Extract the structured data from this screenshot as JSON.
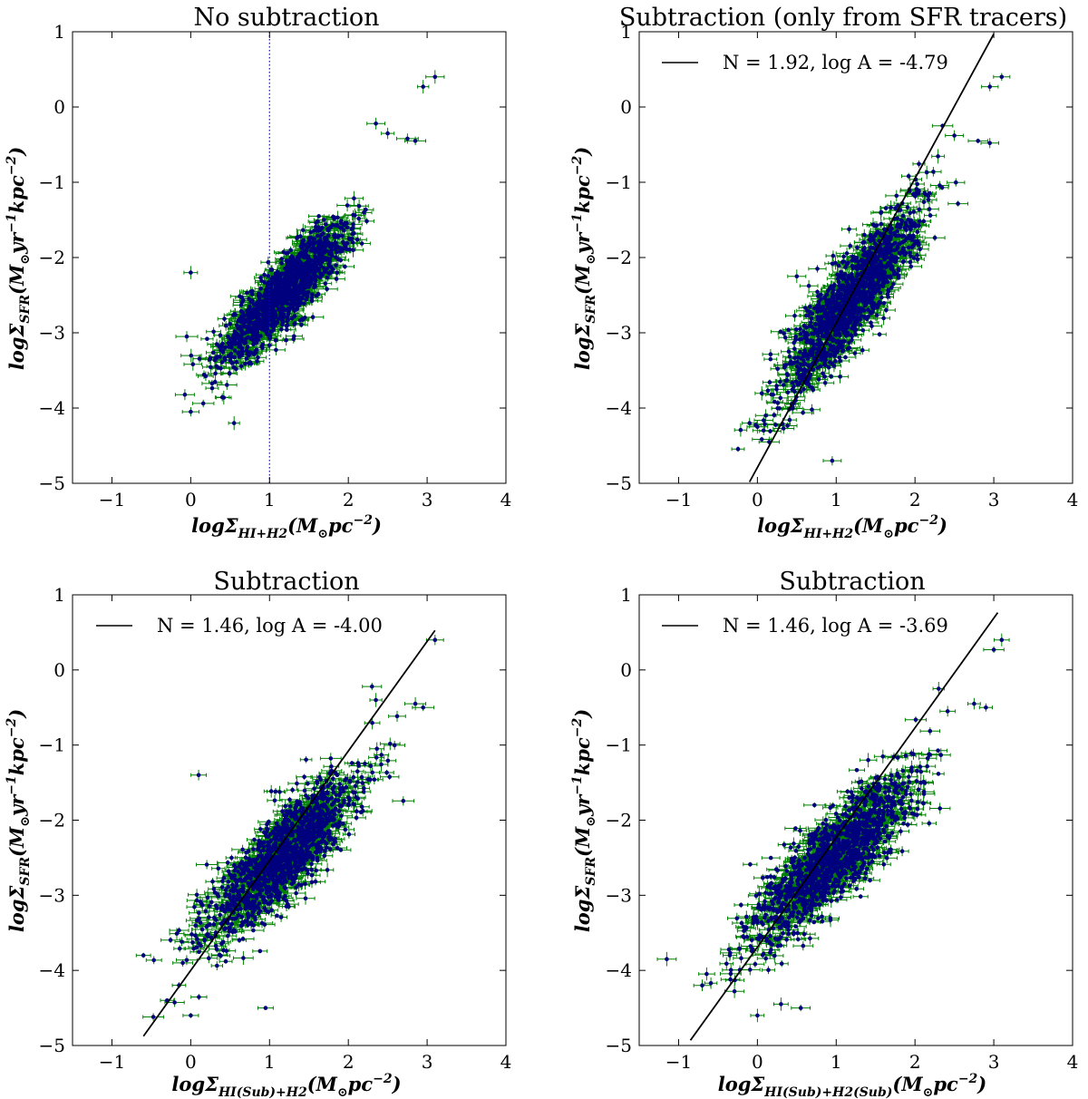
{
  "chart_data": [
    {
      "type": "scatter",
      "title": "No subtraction",
      "xlabel": {
        "base": "logΣ",
        "sub": "HI+H2",
        "unit": "(M",
        "unit_sub": "⊙",
        "unit_rest": "pc",
        "unit_sup": "−2",
        "unit_close": ")"
      },
      "ylabel": {
        "base": "logΣ",
        "sub": "SFR",
        "unit": "(M",
        "unit_sub": "⊙",
        "unit_rest": "yr",
        "unit_sup": "−1",
        "unit_rest2": "kpc",
        "unit_sup2": "−2",
        "unit_close": ")"
      },
      "xlim": [
        -1.5,
        4
      ],
      "ylim": [
        -5,
        1
      ],
      "xticks": [
        "−1",
        "0",
        "1",
        "2",
        "3",
        "4"
      ],
      "yticks": [
        "−5",
        "−4",
        "−3",
        "−2",
        "−1",
        "0",
        "1"
      ],
      "vline": 1.0,
      "fit": null,
      "cloud": {
        "center_x": 1.2,
        "center_y": -2.45,
        "slope": 1.0,
        "spread_x": 0.4,
        "spread_perp": 0.22,
        "n": 1300,
        "x_min": -0.2,
        "x_max": 2.9
      },
      "outliers": [
        [
          3.1,
          0.4
        ],
        [
          2.95,
          0.27
        ],
        [
          2.75,
          -0.42
        ],
        [
          2.85,
          -0.45
        ],
        [
          2.35,
          -0.22
        ],
        [
          2.5,
          -0.35
        ],
        [
          0.55,
          -4.2
        ],
        [
          0.0,
          -4.05
        ],
        [
          -0.05,
          -3.05
        ],
        [
          0.0,
          -2.2
        ]
      ],
      "colors": {
        "points": "#00007f",
        "errorbars": "#008000",
        "vline": "#0000ff"
      }
    },
    {
      "type": "scatter",
      "title": "Subtraction (only from SFR tracers)",
      "xlabel": {
        "base": "logΣ",
        "sub": "HI+H2",
        "unit": "(M",
        "unit_sub": "⊙",
        "unit_rest": "pc",
        "unit_sup": "−2",
        "unit_close": ")"
      },
      "ylabel": {
        "base": "logΣ",
        "sub": "SFR",
        "unit": "(M",
        "unit_sub": "⊙",
        "unit_rest": "yr",
        "unit_sup": "−1",
        "unit_rest2": "kpc",
        "unit_sup2": "−2",
        "unit_close": ")"
      },
      "xlim": [
        -1.5,
        4
      ],
      "ylim": [
        -5,
        1
      ],
      "xticks": [
        "−1",
        "0",
        "1",
        "2",
        "3",
        "4"
      ],
      "yticks": [
        "−5",
        "−4",
        "−3",
        "−2",
        "−1",
        "0",
        "1"
      ],
      "vline": null,
      "fit": {
        "N": 1.92,
        "logA": -4.79,
        "x_range": [
          -0.1,
          3.0
        ]
      },
      "legend": "N = 1.92, log A = -4.79",
      "cloud": {
        "center_x": 1.2,
        "center_y": -2.55,
        "slope": 1.25,
        "spread_x": 0.42,
        "spread_perp": 0.3,
        "n": 1300,
        "x_min": -0.3,
        "x_max": 2.9
      },
      "outliers": [
        [
          3.1,
          0.4
        ],
        [
          2.95,
          0.27
        ],
        [
          2.8,
          -0.45
        ],
        [
          2.95,
          -0.48
        ],
        [
          2.35,
          -0.25
        ],
        [
          2.5,
          -0.38
        ],
        [
          0.0,
          -4.25
        ],
        [
          0.15,
          -4.45
        ],
        [
          -0.1,
          -4.2
        ],
        [
          0.95,
          -4.7
        ],
        [
          0.5,
          -2.25
        ]
      ],
      "colors": {
        "points": "#00007f",
        "errorbars": "#008000"
      }
    },
    {
      "type": "scatter",
      "title": "Subtraction",
      "xlabel": {
        "base": "logΣ",
        "sub": "HI(Sub)+H2",
        "unit": "(M",
        "unit_sub": "⊙",
        "unit_rest": "pc",
        "unit_sup": "−2",
        "unit_close": ")"
      },
      "ylabel": {
        "base": "logΣ",
        "sub": "SFR",
        "unit": "(M",
        "unit_sub": "⊙",
        "unit_rest": "yr",
        "unit_sup": "−1",
        "unit_rest2": "kpc",
        "unit_sup2": "−2",
        "unit_close": ")"
      },
      "xlim": [
        -1.5,
        4
      ],
      "ylim": [
        -5,
        1
      ],
      "xticks": [
        "−1",
        "0",
        "1",
        "2",
        "3",
        "4"
      ],
      "yticks": [
        "−5",
        "−4",
        "−3",
        "−2",
        "−1",
        "0",
        "1"
      ],
      "vline": null,
      "fit": {
        "N": 1.46,
        "logA": -4.0,
        "x_range": [
          -0.6,
          3.1
        ]
      },
      "legend": "N = 1.46, log A = -4.00",
      "cloud": {
        "center_x": 1.15,
        "center_y": -2.5,
        "slope": 0.95,
        "spread_x": 0.48,
        "spread_perp": 0.3,
        "n": 1300,
        "x_min": -0.6,
        "x_max": 2.9
      },
      "outliers": [
        [
          3.1,
          0.4
        ],
        [
          2.85,
          -0.45
        ],
        [
          2.95,
          -0.5
        ],
        [
          2.3,
          -0.22
        ],
        [
          2.35,
          -0.4
        ],
        [
          0.95,
          -4.5
        ],
        [
          0.0,
          -4.6
        ],
        [
          -0.6,
          -3.8
        ],
        [
          -0.3,
          -4.4
        ],
        [
          0.1,
          -1.4
        ]
      ],
      "colors": {
        "points": "#00007f",
        "errorbars": "#008000"
      }
    },
    {
      "type": "scatter",
      "title": "Subtraction",
      "xlabel": {
        "base": "logΣ",
        "sub": "HI(Sub)+H2(Sub)",
        "unit": "(M",
        "unit_sub": "⊙",
        "unit_rest": "pc",
        "unit_sup": "−2",
        "unit_close": ")"
      },
      "ylabel": {
        "base": "logΣ",
        "sub": "SFR",
        "unit": "(M",
        "unit_sub": "⊙",
        "unit_rest": "yr",
        "unit_sup": "−1",
        "unit_rest2": "kpc",
        "unit_sup2": "−2",
        "unit_close": ")"
      },
      "xlim": [
        -1.5,
        4
      ],
      "ylim": [
        -5,
        1
      ],
      "xticks": [
        "−1",
        "0",
        "1",
        "2",
        "3",
        "4"
      ],
      "yticks": [
        "−5",
        "−4",
        "−3",
        "−2",
        "−1",
        "0",
        "1"
      ],
      "vline": null,
      "fit": {
        "N": 1.46,
        "logA": -3.69,
        "x_range": [
          -0.85,
          3.05
        ]
      },
      "legend": "N = 1.46, log A = -3.69",
      "cloud": {
        "center_x": 0.95,
        "center_y": -2.5,
        "slope": 0.95,
        "spread_x": 0.5,
        "spread_perp": 0.3,
        "n": 1300,
        "x_min": -1.0,
        "x_max": 2.9
      },
      "outliers": [
        [
          3.1,
          0.4
        ],
        [
          3.0,
          0.27
        ],
        [
          2.75,
          -0.45
        ],
        [
          2.9,
          -0.5
        ],
        [
          2.3,
          -0.25
        ],
        [
          -1.15,
          -3.85
        ],
        [
          -0.7,
          -4.2
        ],
        [
          -0.35,
          -3.8
        ],
        [
          0.0,
          -4.6
        ],
        [
          0.55,
          -4.5
        ],
        [
          0.3,
          -4.45
        ]
      ],
      "colors": {
        "points": "#00007f",
        "errorbars": "#008000"
      }
    }
  ]
}
